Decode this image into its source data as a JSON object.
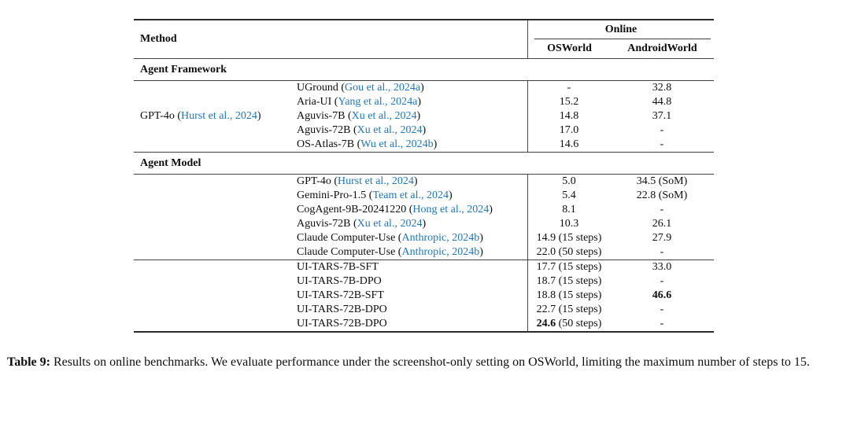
{
  "colors": {
    "citation_blue": "#1d76c2",
    "text": "#0d0d0d"
  },
  "table": {
    "header": {
      "method": "Method",
      "online_group": "Online",
      "col_osworld": "OSWorld",
      "col_androidworld": "AndroidWorld"
    },
    "section1": {
      "label": "Agent Framework",
      "group_label": {
        "pre": "GPT-4o (",
        "cite": "Hurst et al., 2024",
        "post": ")"
      },
      "rows": [
        {
          "pre": "UGround (",
          "cite": "Gou et al., 2024a",
          "post": ")",
          "os": "-",
          "os2": "",
          "aw": "32.8"
        },
        {
          "pre": "Aria-UI (",
          "cite": "Yang et al., 2024a",
          "post": ")",
          "os": "15.2",
          "os2": "",
          "aw": "44.8"
        },
        {
          "pre": "Aguvis-7B (",
          "cite": "Xu et al., 2024",
          "post": ")",
          "os": "14.8",
          "os2": "",
          "aw": "37.1"
        },
        {
          "pre": "Aguvis-72B (",
          "cite": "Xu et al., 2024",
          "post": ")",
          "os": "17.0",
          "os2": "",
          "aw": "-"
        },
        {
          "pre": "OS-Atlas-7B (",
          "cite": "Wu et al., 2024b",
          "post": ")",
          "os": "14.6",
          "os2": "",
          "aw": "-"
        }
      ]
    },
    "section2": {
      "label": "Agent Model",
      "rows_a": [
        {
          "pre": "GPT-4o (",
          "cite": "Hurst et al., 2024",
          "post": ")",
          "os": "5.0",
          "os2": "",
          "aw": "34.5 (SoM)"
        },
        {
          "pre": "Gemini-Pro-1.5 (",
          "cite": "Team et al., 2024",
          "post": ")",
          "os": "5.4",
          "os2": "",
          "aw": "22.8 (SoM)"
        },
        {
          "pre": "CogAgent-9B-20241220 (",
          "cite": "Hong et al., 2024",
          "post": ")",
          "os": "8.1",
          "os2": "",
          "aw": "-"
        },
        {
          "pre": "Aguvis-72B (",
          "cite": "Xu et al., 2024",
          "post": ")",
          "os": "10.3",
          "os2": "",
          "aw": "26.1"
        },
        {
          "pre": "Claude Computer-Use (",
          "cite": "Anthropic, 2024b",
          "post": ")",
          "os": "14.9 (15 steps)",
          "os2": "",
          "aw": "27.9"
        },
        {
          "pre": "Claude Computer-Use (",
          "cite": "Anthropic, 2024b",
          "post": ")",
          "os": "22.0 (50 steps)",
          "os2": "",
          "aw": "-"
        }
      ],
      "rows_b": [
        {
          "pre": "UI-TARS-7B-SFT",
          "cite": "",
          "post": "",
          "os": "17.7 (15 steps)",
          "os2": "",
          "aw": "33.0"
        },
        {
          "pre": "UI-TARS-7B-DPO",
          "cite": "",
          "post": "",
          "os": "18.7 (15 steps)",
          "os2": "",
          "aw": "-"
        },
        {
          "pre": "UI-TARS-72B-SFT",
          "cite": "",
          "post": "",
          "os": "18.8 (15 steps)",
          "os2": "",
          "aw": "46.6"
        },
        {
          "pre": "UI-TARS-72B-DPO",
          "cite": "",
          "post": "",
          "os": "22.7 (15 steps)",
          "os2": "",
          "aw": "-"
        },
        {
          "pre": "UI-TARS-72B-DPO",
          "cite": "",
          "post": "",
          "os": "24.6",
          "os2": " (50 steps)",
          "aw": "-"
        }
      ]
    }
  },
  "caption": {
    "label": "Table 9:",
    "text": " Results on online benchmarks. We evaluate performance under the screenshot-only setting on OSWorld, limiting the maximum number of steps to 15."
  }
}
